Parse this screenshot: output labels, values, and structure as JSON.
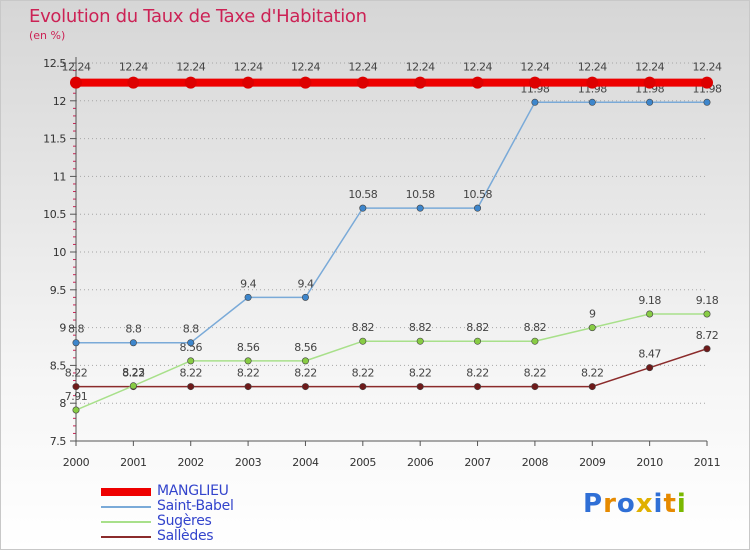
{
  "title": "Evolution du Taux de Taxe d'Habitation",
  "subtitle": "(en %)",
  "logo": {
    "text": "Proxiti",
    "letter_colors": [
      "#2f6fd6",
      "#e68a00",
      "#2f6fd6",
      "#e0b000",
      "#2f6fd6",
      "#e68a00",
      "#7ab800"
    ]
  },
  "colors": {
    "grid": "#a6a6a6",
    "axis": "#555555",
    "label": "#333333",
    "point_label": "#444444"
  },
  "chart_data": {
    "type": "line",
    "title": "Evolution du Taux de Taxe d'Habitation",
    "subtitle": "(en %)",
    "xlabel": "",
    "ylabel": "",
    "ylim": [
      7.5,
      12.5
    ],
    "y_ticks": [
      7.5,
      8,
      8.5,
      9,
      9.5,
      10,
      10.5,
      11,
      11.5,
      12,
      12.5
    ],
    "y_tick_labels": [
      "7.5",
      "8",
      "8.5",
      "9",
      "9.5",
      "10",
      "10.5",
      "11",
      "11.5",
      "12",
      "12.5"
    ],
    "categories": [
      "2000",
      "2001",
      "2002",
      "2003",
      "2004",
      "2005",
      "2006",
      "2007",
      "2008",
      "2009",
      "2010",
      "2011"
    ],
    "grid": "horizontal dotted",
    "legend_placement": "bottom-left",
    "series": [
      {
        "name": "Sallèdes",
        "color": "#8b2b2b",
        "point_fill": "#6e1a1a",
        "values": [
          8.22,
          8.22,
          8.22,
          8.22,
          8.22,
          8.22,
          8.22,
          8.22,
          8.22,
          8.22,
          8.47,
          8.72
        ],
        "labels": [
          "8.22",
          "8.22",
          "8.22",
          "8.22",
          "8.22",
          "8.22",
          "8.22",
          "8.22",
          "8.22",
          "8.22",
          "8.47",
          "8.72"
        ]
      },
      {
        "name": "Sugères",
        "color": "#a8e08a",
        "point_fill": "#88cc44",
        "values": [
          7.91,
          8.23,
          8.56,
          8.56,
          8.56,
          8.82,
          8.82,
          8.82,
          8.82,
          9,
          9.18,
          9.18
        ],
        "labels": [
          "7.91",
          "8.23",
          "8.56",
          "8.56",
          "8.56",
          "8.82",
          "8.82",
          "8.82",
          "8.82",
          "9",
          "9.18",
          "9.18"
        ]
      },
      {
        "name": "Saint-Babel",
        "color": "#7aaad8",
        "point_fill": "#3d86cc",
        "values": [
          8.8,
          8.8,
          8.8,
          9.4,
          9.4,
          10.58,
          10.58,
          10.58,
          11.98,
          11.98,
          11.98,
          11.98
        ],
        "labels": [
          "8.8",
          "8.8",
          "8.8",
          "9.4",
          "9.4",
          "10.58",
          "10.58",
          "10.58",
          "11.98",
          "11.98",
          "11.98",
          "11.98"
        ]
      },
      {
        "name": "MANGLIEU",
        "color": "#ee0000",
        "point_fill": "#dd0000",
        "values": [
          12.24,
          12.24,
          12.24,
          12.24,
          12.24,
          12.24,
          12.24,
          12.24,
          12.24,
          12.24,
          12.24,
          12.24
        ],
        "labels": [
          "12.24",
          "12.24",
          "12.24",
          "12.24",
          "12.24",
          "12.24",
          "12.24",
          "12.24",
          "12.24",
          "12.24",
          "12.24",
          "12.24"
        ]
      }
    ],
    "legend": [
      {
        "name": "MANGLIEU",
        "color": "#ee0000",
        "thick": true
      },
      {
        "name": "Saint-Babel",
        "color": "#7aaad8",
        "thick": false
      },
      {
        "name": "Sugères",
        "color": "#a8e08a",
        "thick": false
      },
      {
        "name": "Sallèdes",
        "color": "#8b2b2b",
        "thick": false
      }
    ]
  }
}
